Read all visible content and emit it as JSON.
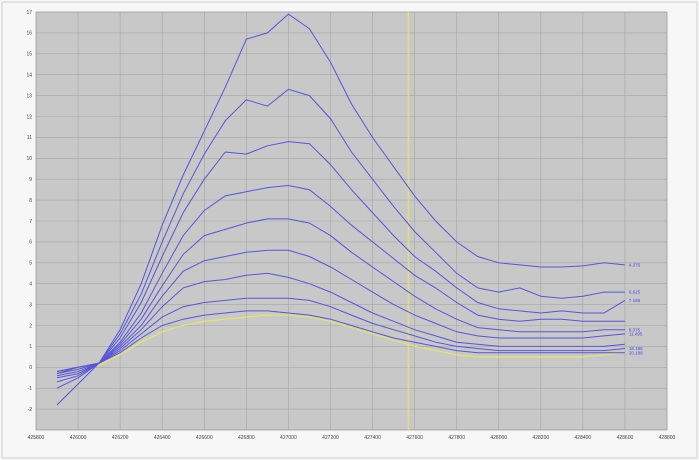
{
  "chart_data": {
    "type": "line",
    "title": "",
    "xlabel": "",
    "ylabel": "",
    "xlim": [
      425800,
      428800
    ],
    "ylim": [
      -3,
      17
    ],
    "yticks": [
      -2,
      -1,
      0,
      1,
      2,
      3,
      4,
      5,
      6,
      7,
      8,
      9,
      10,
      11,
      12,
      13,
      14,
      15,
      16,
      17
    ],
    "xticks": [
      425800,
      426000,
      426200,
      426400,
      426600,
      426800,
      427000,
      427200,
      427400,
      427600,
      427800,
      428000,
      428200,
      428400,
      428600,
      428800
    ],
    "grid": true,
    "vline_x": 427570,
    "colors": {
      "series": "#5555dd",
      "reference": "#e8e85a",
      "vline": "#e8e85a",
      "plot_bg": "#c8c8c8",
      "grid": "#a6a6a6"
    },
    "x": [
      425900,
      426000,
      426100,
      426200,
      426300,
      426400,
      426500,
      426600,
      426700,
      426800,
      426900,
      427000,
      427100,
      427200,
      427300,
      427400,
      427500,
      427600,
      427700,
      427800,
      427900,
      428000,
      428100,
      428200,
      428300,
      428400,
      428500,
      428600
    ],
    "series": [
      {
        "name": "4.375",
        "values": [
          -1.8,
          -0.8,
          0.2,
          1.8,
          4.0,
          6.8,
          9.2,
          11.3,
          13.4,
          15.7,
          16.0,
          16.9,
          16.2,
          14.6,
          12.6,
          11.0,
          9.6,
          8.2,
          7.0,
          6.0,
          5.3,
          5.0,
          4.9,
          4.8,
          4.8,
          4.85,
          5.0,
          4.9
        ]
      },
      {
        "name": "6.625",
        "values": [
          -1.0,
          -0.5,
          0.2,
          1.6,
          3.5,
          6.0,
          8.3,
          10.2,
          11.8,
          12.8,
          12.5,
          13.3,
          13.0,
          11.9,
          10.3,
          9.0,
          7.7,
          6.5,
          5.5,
          4.5,
          3.8,
          3.6,
          3.8,
          3.4,
          3.3,
          3.4,
          3.6,
          3.6
        ]
      },
      {
        "name": "7.188",
        "values": [
          -0.7,
          -0.4,
          0.2,
          1.4,
          3.1,
          5.3,
          7.4,
          9.0,
          10.3,
          10.2,
          10.6,
          10.8,
          10.7,
          9.7,
          8.5,
          7.4,
          6.3,
          5.3,
          4.6,
          3.8,
          3.1,
          2.8,
          2.7,
          2.6,
          2.7,
          2.6,
          2.6,
          3.2
        ]
      },
      {
        "name": "",
        "values": [
          -0.5,
          -0.3,
          0.2,
          1.2,
          2.6,
          4.5,
          6.3,
          7.5,
          8.2,
          8.4,
          8.6,
          8.7,
          8.5,
          7.7,
          6.8,
          6.0,
          5.2,
          4.4,
          3.8,
          3.1,
          2.5,
          2.3,
          2.2,
          2.3,
          2.3,
          2.2,
          2.2,
          2.2
        ]
      },
      {
        "name": "8.375",
        "values": [
          -0.4,
          -0.2,
          0.2,
          1.1,
          2.3,
          3.9,
          5.4,
          6.3,
          6.6,
          6.9,
          7.1,
          7.1,
          6.9,
          6.3,
          5.5,
          4.8,
          4.1,
          3.4,
          2.8,
          2.3,
          1.9,
          1.8,
          1.7,
          1.7,
          1.7,
          1.7,
          1.8,
          1.8
        ]
      },
      {
        "name": "11.495",
        "values": [
          -0.3,
          -0.1,
          0.2,
          1.0,
          2.0,
          3.4,
          4.6,
          5.1,
          5.3,
          5.5,
          5.6,
          5.6,
          5.3,
          4.8,
          4.2,
          3.6,
          3.0,
          2.5,
          2.1,
          1.7,
          1.5,
          1.4,
          1.4,
          1.4,
          1.4,
          1.4,
          1.5,
          1.6
        ]
      },
      {
        "name": "",
        "values": [
          -0.3,
          0.0,
          0.2,
          0.9,
          1.8,
          2.9,
          3.8,
          4.1,
          4.2,
          4.4,
          4.5,
          4.3,
          4.0,
          3.6,
          3.1,
          2.6,
          2.2,
          1.8,
          1.5,
          1.2,
          1.1,
          1.0,
          1.0,
          1.0,
          1.0,
          1.0,
          1.0,
          1.1
        ]
      },
      {
        "name": "18.188",
        "values": [
          -0.2,
          0.0,
          0.2,
          0.8,
          1.6,
          2.4,
          2.9,
          3.1,
          3.2,
          3.3,
          3.3,
          3.3,
          3.2,
          2.9,
          2.5,
          2.1,
          1.8,
          1.5,
          1.2,
          1.0,
          0.9,
          0.8,
          0.8,
          0.8,
          0.8,
          0.8,
          0.8,
          0.9
        ]
      },
      {
        "name": "20.188",
        "values": [
          -0.2,
          0.0,
          0.2,
          0.7,
          1.4,
          2.0,
          2.3,
          2.5,
          2.6,
          2.7,
          2.7,
          2.6,
          2.5,
          2.3,
          2.0,
          1.7,
          1.4,
          1.2,
          1.0,
          0.8,
          0.7,
          0.7,
          0.7,
          0.7,
          0.7,
          0.7,
          0.7,
          0.7
        ]
      }
    ],
    "reference": {
      "name": "",
      "values": [
        -0.3,
        -0.1,
        0.1,
        0.6,
        1.2,
        1.7,
        2.0,
        2.2,
        2.3,
        2.4,
        2.5,
        2.5,
        2.4,
        2.2,
        1.9,
        1.6,
        1.3,
        1.0,
        0.8,
        0.6,
        0.5,
        0.5,
        0.5,
        0.5,
        0.5,
        0.5,
        0.6,
        0.7
      ]
    }
  }
}
